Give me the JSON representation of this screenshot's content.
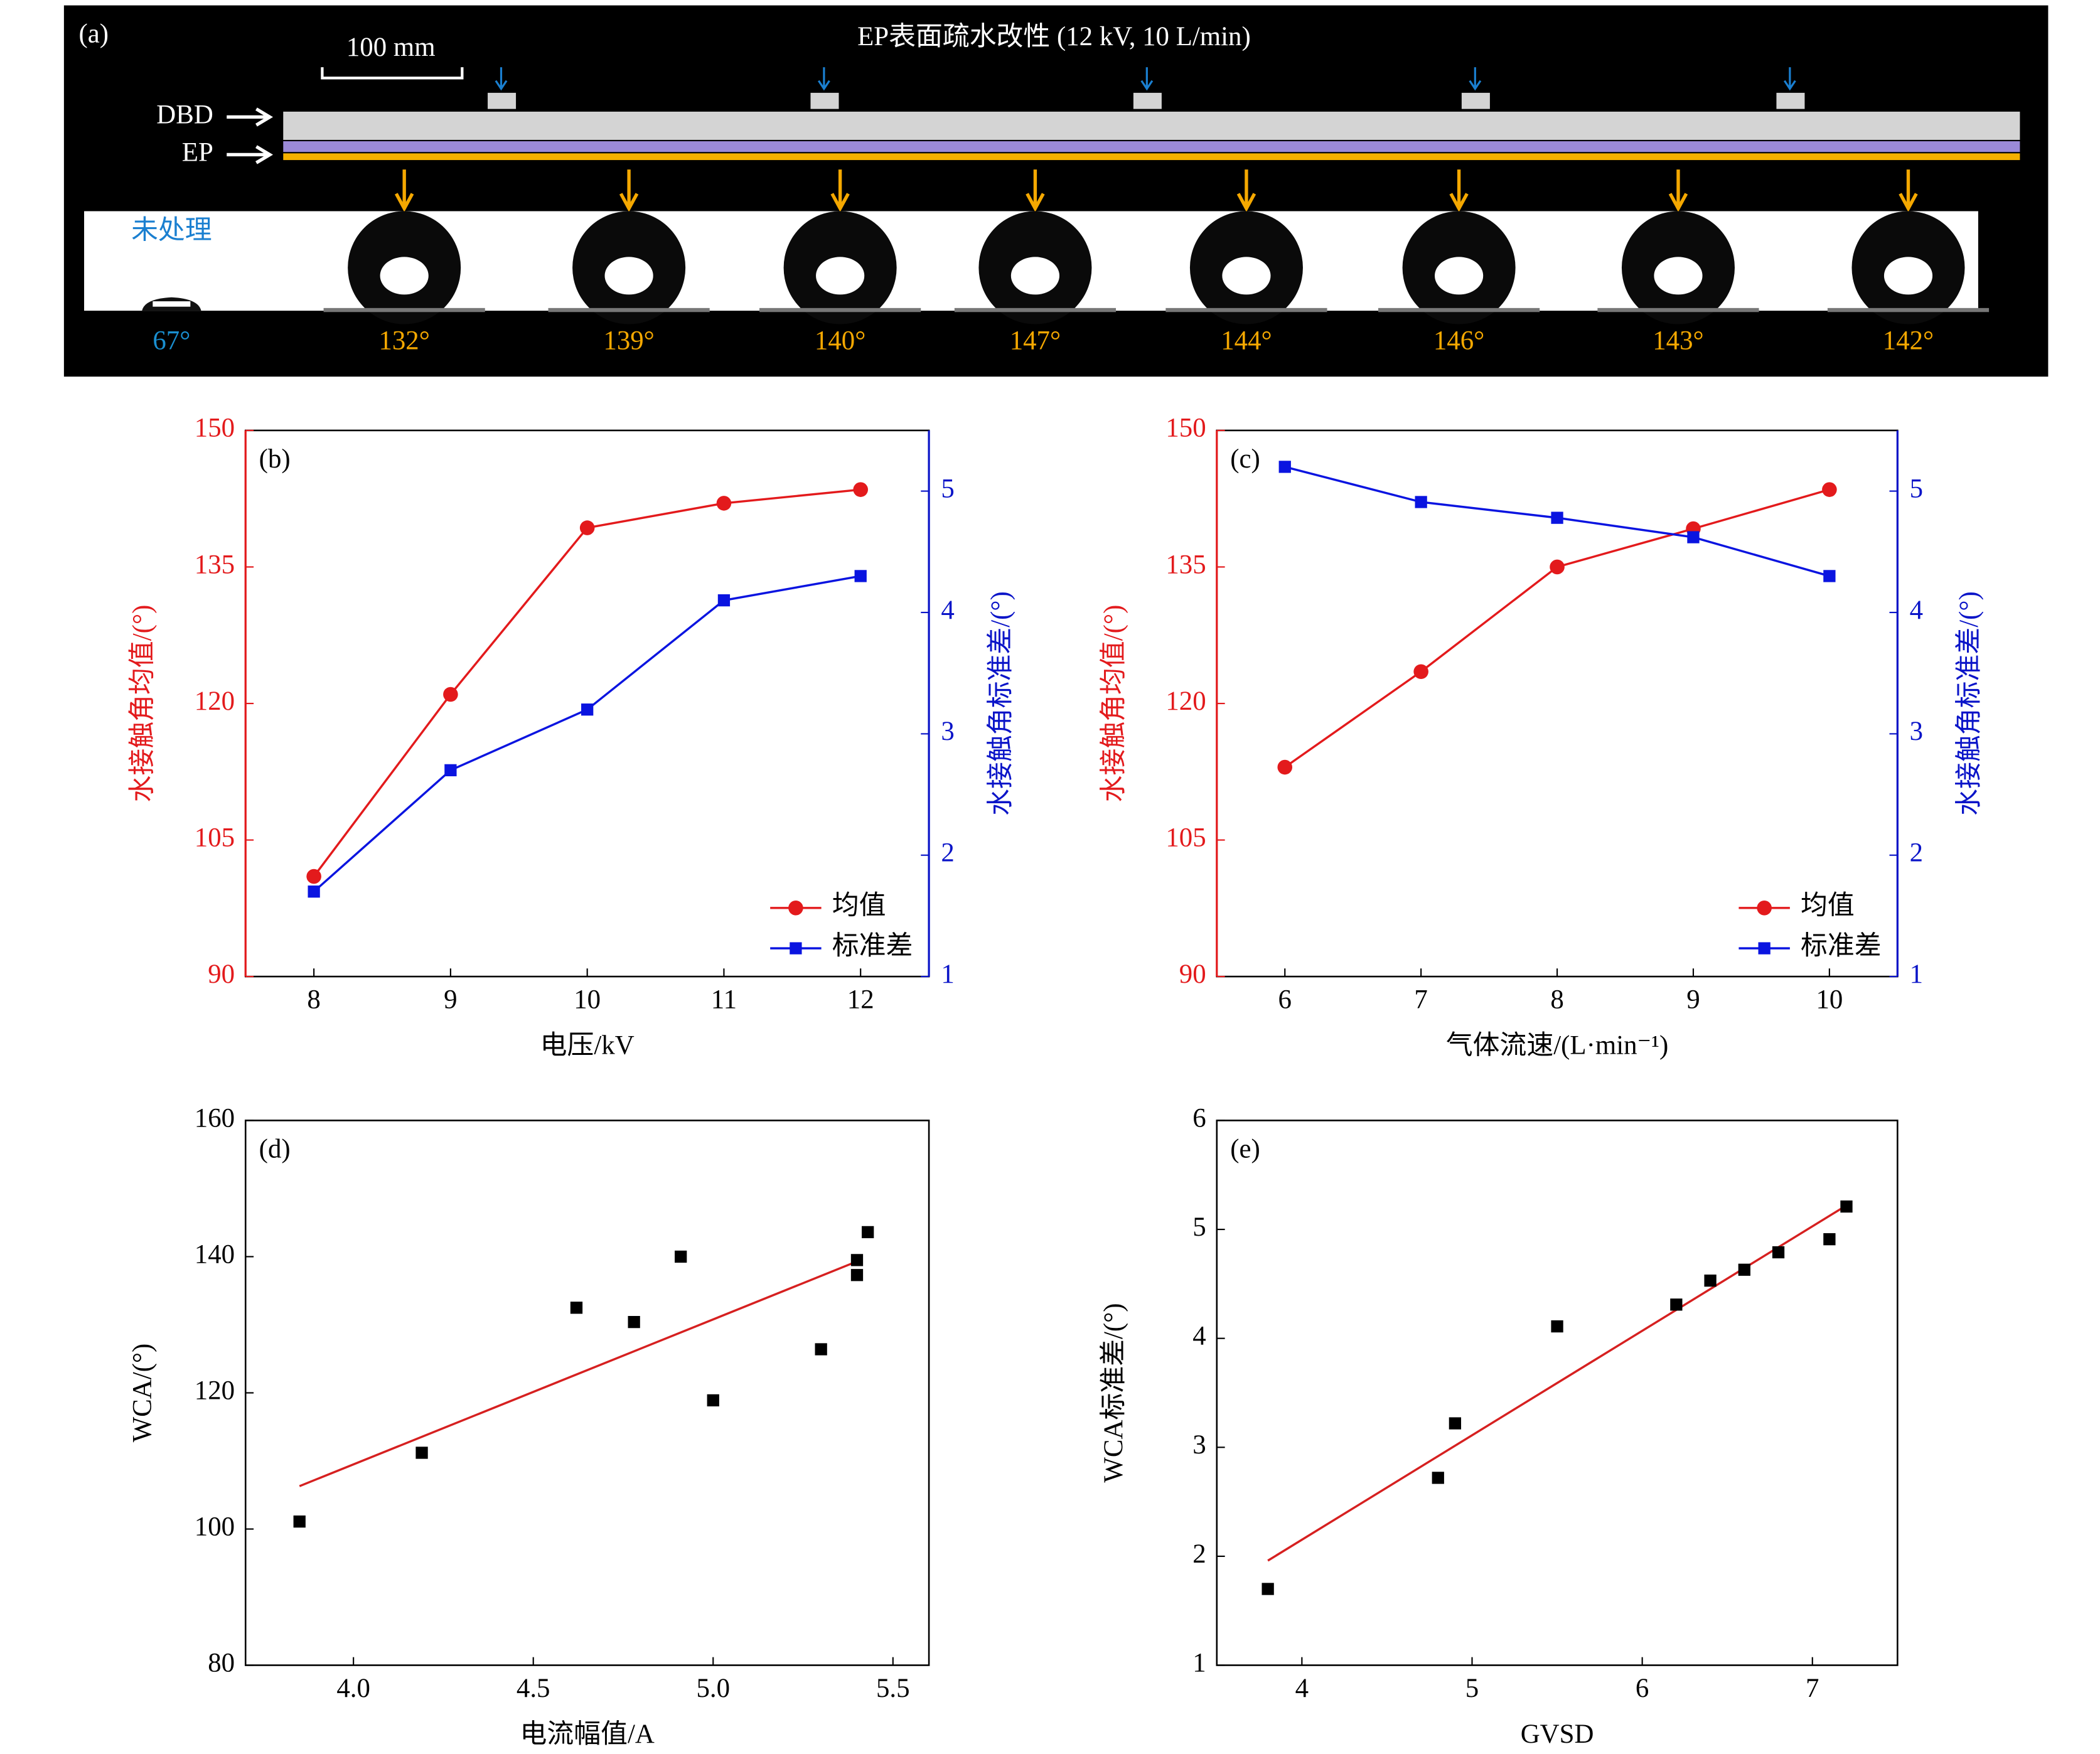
{
  "figure_a": {
    "panel": "(a)",
    "title": "EP表面疏水改性 (12 kV, 10 L/min)",
    "scale_bar": "100 mm",
    "layer_labels": [
      "DBD",
      "EP"
    ],
    "untreated": "未处理",
    "angles": [
      "67°",
      "132°",
      "139°",
      "140°",
      "147°",
      "144°",
      "146°",
      "143°",
      "142°"
    ]
  },
  "chart_data": [
    {
      "type": "line",
      "panel": "(b)",
      "x": [
        8,
        9,
        10,
        11,
        12
      ],
      "xlim": [
        7.5,
        12.5
      ],
      "xticks": [
        8,
        9,
        10,
        11,
        12
      ],
      "xlabel": "电压/kV",
      "ylim": [
        90,
        150
      ],
      "yticks": [
        90,
        105,
        120,
        135,
        150
      ],
      "ylabel": "水接触角均值/(°)",
      "ycolor": "#e31a1c",
      "y2lim": [
        1,
        5.5
      ],
      "y2ticks": [
        1,
        2,
        3,
        4,
        5
      ],
      "y2label": "水接触角标准差/(°)",
      "y2color": "#0a14c8",
      "legend": "lower right",
      "series": [
        {
          "name": "均值",
          "color": "#e31a1c",
          "marker": "circle",
          "values": [
            101,
            121,
            139.3,
            142,
            143.5
          ]
        },
        {
          "name": "标准差",
          "color": "#0a14e0",
          "marker": "square",
          "axis": "y2",
          "values": [
            1.7,
            2.7,
            3.2,
            4.1,
            4.3
          ]
        }
      ]
    },
    {
      "type": "line",
      "panel": "(c)",
      "x": [
        6,
        7,
        8,
        9,
        10
      ],
      "xlim": [
        5.5,
        10.5
      ],
      "xticks": [
        6,
        7,
        8,
        9,
        10
      ],
      "xlabel": "气体流速/(L·min⁻¹)",
      "ylim": [
        90,
        150
      ],
      "yticks": [
        90,
        105,
        120,
        135,
        150
      ],
      "ylabel": "水接触角均值/(°)",
      "ycolor": "#e31a1c",
      "y2lim": [
        1,
        5.5
      ],
      "y2ticks": [
        1,
        2,
        3,
        4,
        5
      ],
      "y2label": "水接触角标准差/(°)",
      "y2color": "#0a14c8",
      "legend": "lower right",
      "series": [
        {
          "name": "均值",
          "color": "#e31a1c",
          "marker": "circle",
          "values": [
            113,
            123.5,
            135,
            139.2,
            143.5
          ]
        },
        {
          "name": "标准差",
          "color": "#0a14e0",
          "marker": "square",
          "axis": "y2",
          "values": [
            5.2,
            4.91,
            4.78,
            4.62,
            4.3
          ]
        }
      ]
    },
    {
      "type": "scatter",
      "panel": "(d)",
      "xlim": [
        3.7,
        5.6
      ],
      "xticks": [
        {
          "value": 4,
          "label": "4.0"
        },
        {
          "value": 4.5,
          "label": "4.5"
        },
        {
          "value": 5,
          "label": "5.0"
        },
        {
          "value": 5.5,
          "label": "5.5"
        }
      ],
      "xlabel": "电流幅值/A",
      "ylim": [
        80,
        160
      ],
      "yticks": [
        80,
        100,
        120,
        140,
        160
      ],
      "ylabel": "WCA/(°)",
      "points": {
        "color": "#000000",
        "x": [
          3.85,
          4.19,
          4.62,
          4.78,
          4.91,
          5.0,
          5.3,
          5.4,
          5.4,
          5.43
        ],
        "values": [
          101.1,
          111.2,
          132.5,
          130.4,
          140,
          118.9,
          126.4,
          139.5,
          137.3,
          143.6
        ]
      },
      "fit": {
        "color": "#d62020",
        "x": [
          3.85,
          5.4
        ],
        "values": [
          106.3,
          139.3
        ]
      }
    },
    {
      "type": "scatter",
      "panel": "(e)",
      "xlim": [
        3.5,
        7.5
      ],
      "xticks": [
        4,
        5,
        6,
        7
      ],
      "xlabel": "GVSD",
      "ylim": [
        1,
        6
      ],
      "yticks": [
        1,
        2,
        3,
        4,
        5,
        6
      ],
      "ylabel": "WCA标准差/(°)",
      "points": {
        "color": "#000000",
        "x": [
          3.8,
          4.8,
          4.9,
          5.5,
          6.2,
          6.4,
          6.6,
          6.8,
          7.1,
          7.2
        ],
        "values": [
          1.7,
          2.72,
          3.22,
          4.11,
          4.31,
          4.53,
          4.63,
          4.79,
          4.91,
          5.21
        ]
      },
      "fit": {
        "color": "#d62020",
        "x": [
          3.8,
          7.2
        ],
        "values": [
          1.96,
          5.22
        ]
      }
    }
  ]
}
